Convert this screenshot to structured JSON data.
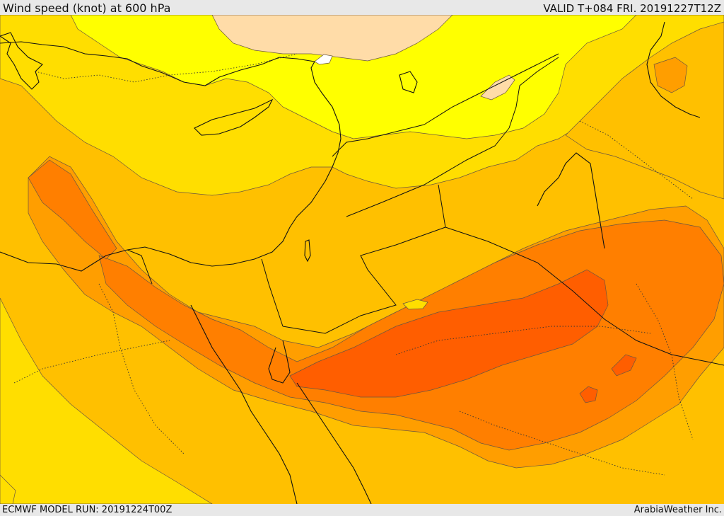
{
  "header": {
    "title": "Wind speed (knot) at 600 hPa",
    "valid_time": "VALID T+084 FRI. 20191227T12Z"
  },
  "footer": {
    "model_run": "ECMWF MODEL RUN: 20191224T00Z",
    "credit": "ArabiaWeather Inc."
  },
  "map": {
    "field": "wind speed",
    "level": "600 hPa",
    "palette": [
      "#ffdca8",
      "#ffff00",
      "#ffde00",
      "#ffc000",
      "#ff9e00",
      "#ff7f00",
      "#ff5e00"
    ]
  }
}
